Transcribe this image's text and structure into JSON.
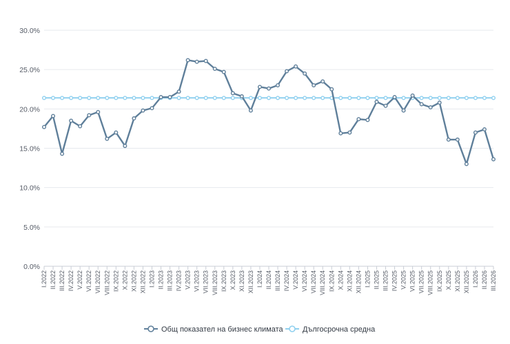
{
  "chart_data": {
    "type": "line",
    "title": "",
    "xlabel": "",
    "ylabel": "",
    "ylim": [
      0,
      30
    ],
    "yticks": [
      "0.0%",
      "5.0%",
      "10.0%",
      "15.0%",
      "20.0%",
      "25.0%",
      "30.0%"
    ],
    "ytick_values": [
      0,
      5,
      10,
      15,
      20,
      25,
      30
    ],
    "grid": true,
    "legend_position": "bottom",
    "categories": [
      "I.2022",
      "II.2022",
      "III.2022",
      "IV.2022",
      "V.2022",
      "VI.2022",
      "VII.2022",
      "VIII.2022",
      "IX.2022",
      "X.2022",
      "XI.2022",
      "XII.2022",
      "I.2023",
      "II.2023",
      "III.2023",
      "IV.2023",
      "V.2023",
      "VI.2023",
      "VII.2023",
      "VIII.2023",
      "IX.2023",
      "X.2023",
      "XI.2023",
      "XII.2023",
      "I.2024",
      "II.2024",
      "III.2024",
      "IV.2024",
      "V.2024",
      "VI.2024",
      "VII.2024",
      "VIII.2024",
      "IX.2024",
      "X.2024",
      "XI.2024",
      "XII.2024",
      "I.2025",
      "II.2025",
      "III.2025",
      "IV.2025",
      "V.2025",
      "VI.2025",
      "VII.2025",
      "VIII.2025",
      "IX.2025",
      "X.2025",
      "XI.2025",
      "XII.2025",
      "I.2026",
      "II.2026",
      "III.2026"
    ],
    "series": [
      {
        "name": "Общ показател на бизнес климата",
        "color": "#5f7f9a",
        "values": [
          17.7,
          19.1,
          14.3,
          18.5,
          17.8,
          19.2,
          19.6,
          16.2,
          17.0,
          15.3,
          18.8,
          19.8,
          20.1,
          21.5,
          21.5,
          22.2,
          26.2,
          26.0,
          26.1,
          25.1,
          24.7,
          22.0,
          21.6,
          19.8,
          22.8,
          22.6,
          23.0,
          24.8,
          25.4,
          24.5,
          23.0,
          23.5,
          22.5,
          16.9,
          17.0,
          18.7,
          18.6,
          20.9,
          20.4,
          21.5,
          19.8,
          21.7,
          20.6,
          20.2,
          20.8,
          16.1,
          16.1,
          13.0,
          17.0,
          17.4,
          13.6
        ]
      },
      {
        "name": "Дългосрочна средна",
        "color": "#8fd0ef",
        "values": [
          21.4,
          21.4,
          21.4,
          21.4,
          21.4,
          21.4,
          21.4,
          21.4,
          21.4,
          21.4,
          21.4,
          21.4,
          21.4,
          21.4,
          21.4,
          21.4,
          21.4,
          21.4,
          21.4,
          21.4,
          21.4,
          21.4,
          21.4,
          21.4,
          21.4,
          21.4,
          21.4,
          21.4,
          21.4,
          21.4,
          21.4,
          21.4,
          21.4,
          21.4,
          21.4,
          21.4,
          21.4,
          21.4,
          21.4,
          21.4,
          21.4,
          21.4,
          21.4,
          21.4,
          21.4,
          21.4,
          21.4,
          21.4,
          21.4,
          21.4,
          21.4
        ]
      }
    ]
  }
}
